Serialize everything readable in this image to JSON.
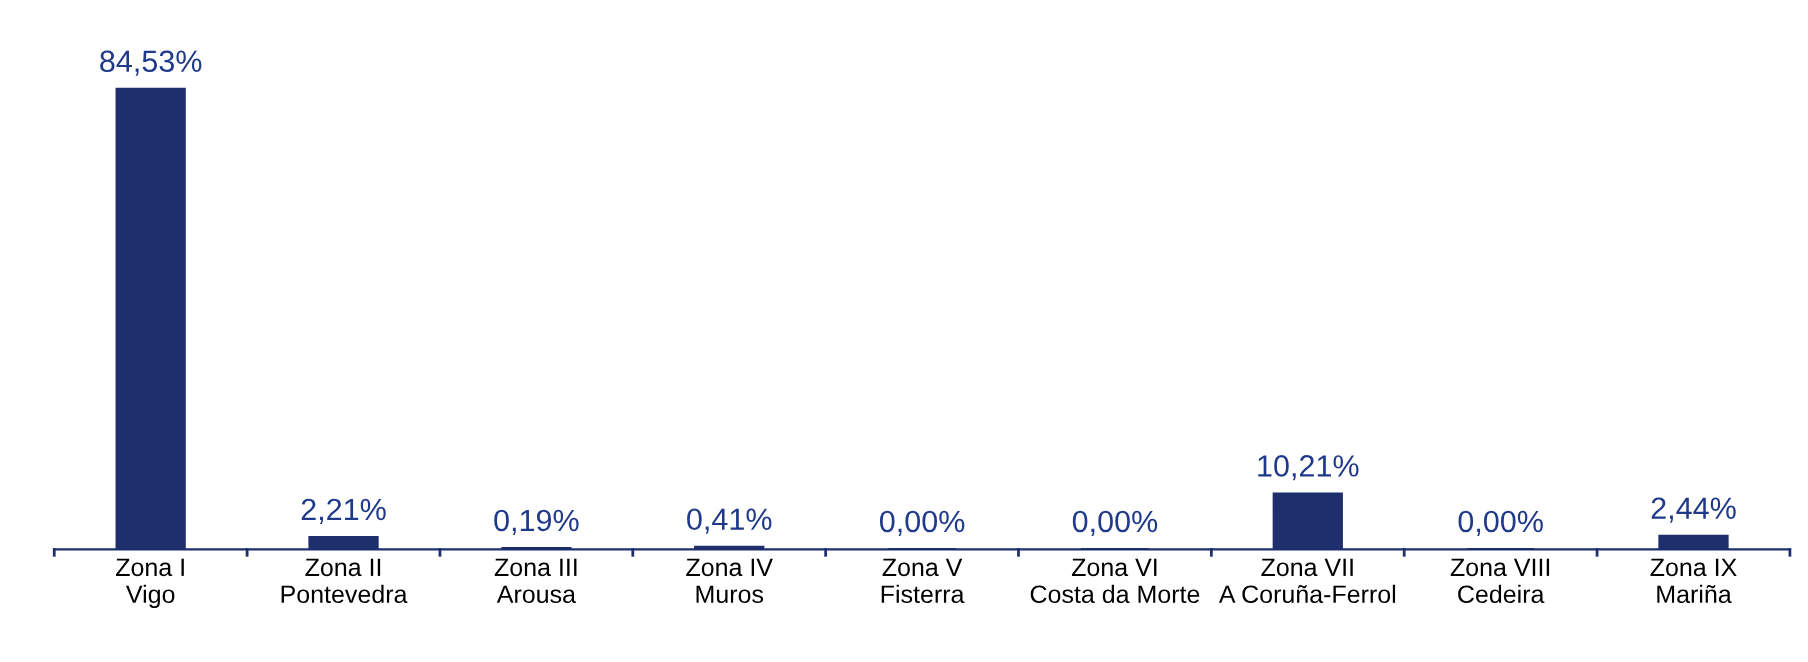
{
  "chart_data": {
    "type": "bar",
    "categories": [
      "Zona I\nVigo",
      "Zona II\nPontevedra",
      "Zona III\nArousa",
      "Zona IV\nMuros",
      "Zona V\nFisterra",
      "Zona VI\nCosta da Morte",
      "Zona VII\nA Coruña-Ferrol",
      "Zona VIII\nCedeira",
      "Zona IX\nMariña"
    ],
    "values": [
      84.53,
      2.21,
      0.19,
      0.41,
      0.0,
      0.0,
      10.21,
      0.0,
      2.44
    ],
    "value_labels": [
      "84,53%",
      "2,21%",
      "0,19%",
      "0,41%",
      "0,00%",
      "0,00%",
      "10,21%",
      "0,00%",
      "2,44%"
    ],
    "color": "#1f2f6e",
    "tick_labels": "x"
  }
}
